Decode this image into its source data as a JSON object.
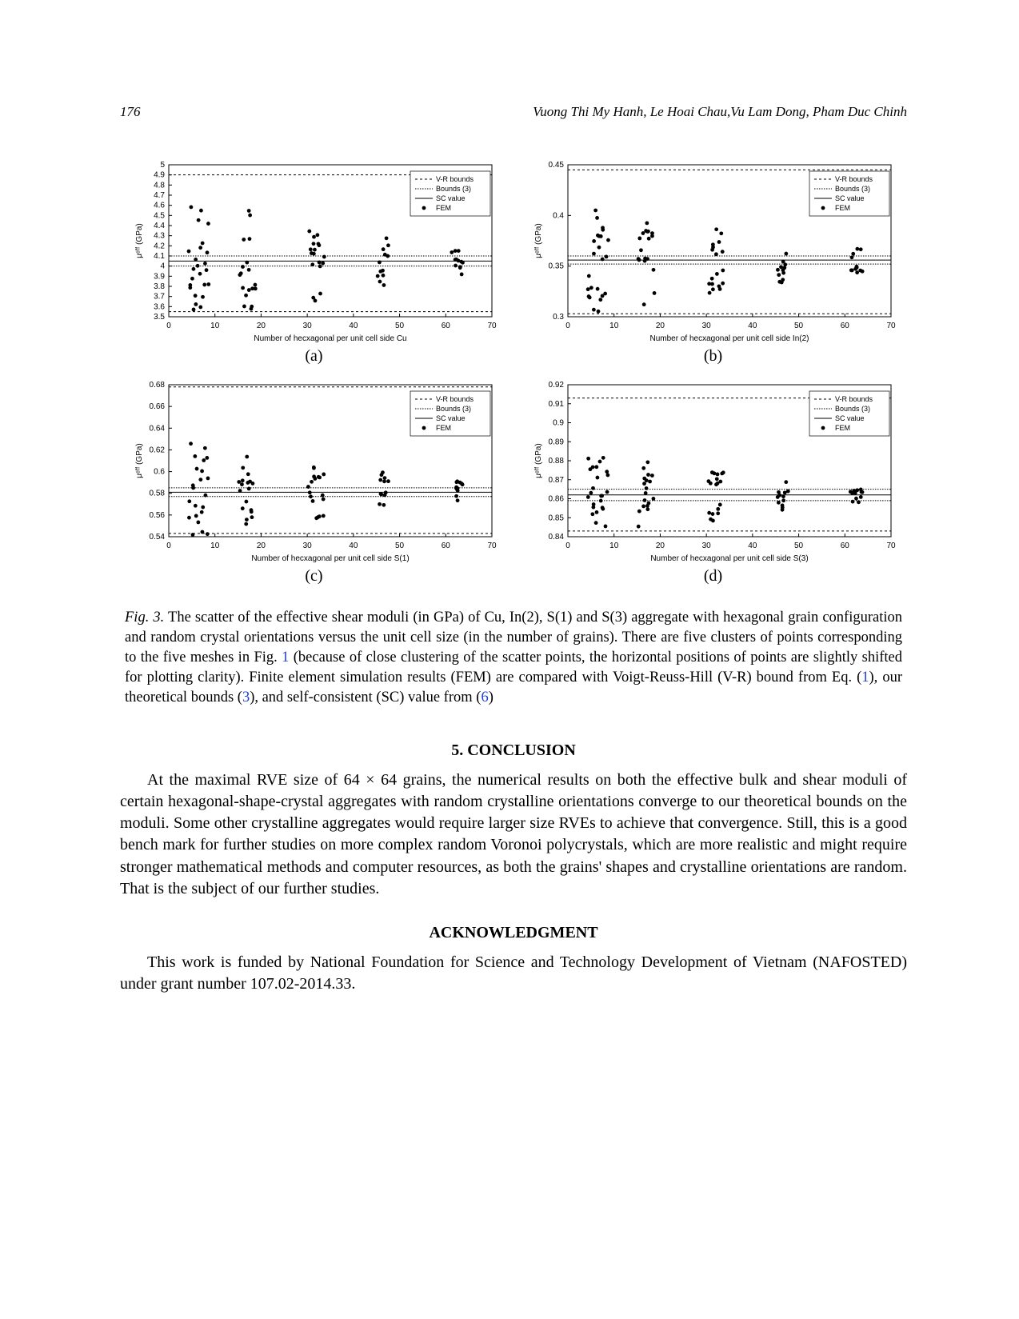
{
  "header": {
    "page_number": "176",
    "authors": "Vuong Thi My Hanh, Le Hoai Chau,Vu Lam Dong, Pham Duc Chinh"
  },
  "chart_common": {
    "font_family": "Helvetica, Arial, sans-serif",
    "axis_fontsize": 10,
    "legend_fontsize": 9,
    "marker_color": "#000000",
    "marker_size": 2.4,
    "line_colors": {
      "vr_upper": "#000000",
      "vr_lower": "#000000",
      "bounds_upper": "#000000",
      "bounds_lower": "#000000",
      "sc": "#000000"
    },
    "line_styles": {
      "vr": "3,3",
      "bounds": "1.5,1.5",
      "sc": "none"
    },
    "legend_entries": [
      "V-R bounds",
      "Bounds (3)",
      "SC value",
      "FEM"
    ]
  },
  "charts": [
    {
      "id": "a",
      "sublabel": "(a)",
      "ylabel": "μᵉᶠᶠ (GPa)",
      "xlabel": "Number of hecxagonal per unit cell side Cu",
      "xlim": [
        0,
        70
      ],
      "xtick_step": 10,
      "ylim": [
        3.5,
        5.0
      ],
      "ytick_step": 0.1,
      "lines": {
        "vr_upper": 4.9,
        "vr_lower": 3.55,
        "bounds_upper": 4.1,
        "bounds_lower": 4.0,
        "sc": 4.05
      },
      "clusters_x": [
        5,
        6,
        7,
        8,
        16,
        17,
        18,
        31,
        32,
        33,
        46,
        47,
        62,
        63
      ],
      "y_center": 4.05,
      "y_spread": 0.65
    },
    {
      "id": "b",
      "sublabel": "(b)",
      "ylabel": "μᵉᶠᶠ (GPa)",
      "xlabel": "Number of hecxagonal per unit cell side In(2)",
      "xlim": [
        0,
        70
      ],
      "xtick_step": 10,
      "ylim": [
        0.3,
        0.45
      ],
      "ytick_step": 0.05,
      "lines": {
        "vr_upper": 0.445,
        "vr_lower": 0.303,
        "bounds_upper": 0.36,
        "bounds_lower": 0.352,
        "sc": 0.356
      },
      "clusters_x": [
        5,
        6,
        7,
        8,
        16,
        17,
        18,
        31,
        32,
        33,
        46,
        47,
        62,
        63
      ],
      "y_center": 0.356,
      "y_spread": 0.055
    },
    {
      "id": "c",
      "sublabel": "(c)",
      "ylabel": "μᵉᶠᶠ (GPa)",
      "xlabel": "Number of hecxagonal per unit cell side S(1)",
      "xlim": [
        0,
        70
      ],
      "xtick_step": 10,
      "ylim": [
        0.54,
        0.68
      ],
      "ytick_step": 0.02,
      "lines": {
        "vr_upper": 0.678,
        "vr_lower": 0.543,
        "bounds_upper": 0.585,
        "bounds_lower": 0.577,
        "sc": 0.581
      },
      "clusters_x": [
        5,
        6,
        7,
        8,
        16,
        17,
        18,
        31,
        32,
        33,
        46,
        47,
        62,
        63
      ],
      "y_center": 0.581,
      "y_spread": 0.05
    },
    {
      "id": "d",
      "sublabel": "(d)",
      "ylabel": "μᵉᶠᶠ (GPa)",
      "xlabel": "Number of hecxagonal per unit cell side S(3)",
      "xlim": [
        0,
        70
      ],
      "xtick_step": 10,
      "ylim": [
        0.84,
        0.92
      ],
      "ytick_step": 0.01,
      "lines": {
        "vr_upper": 0.913,
        "vr_lower": 0.843,
        "bounds_upper": 0.865,
        "bounds_lower": 0.859,
        "sc": 0.862
      },
      "clusters_x": [
        5,
        6,
        7,
        8,
        16,
        17,
        18,
        31,
        32,
        33,
        46,
        47,
        62,
        63
      ],
      "y_center": 0.862,
      "y_spread": 0.023
    }
  ],
  "caption": {
    "figlabel": "Fig. 3.",
    "body1": "The scatter of the effective shear moduli (in GPa) of Cu, In(2), S(1) and S(3) aggregate with hexagonal grain configuration and random crystal orientations versus the unit cell size (in the number of grains). There are five clusters of points corresponding to the five meshes in Fig. ",
    "ref1": "1",
    "body2": " (because of close clustering of the scatter points, the horizontal positions of points are slightly shifted for plotting clarity).   Finite element simulation results (FEM) are compared with Voigt-Reuss-Hill (V-R) bound from Eq. (",
    "ref2": "1",
    "body3": "), our theoretical bounds (",
    "ref3": "3",
    "body4": "), and self-consistent (SC) value from (",
    "ref4": "6",
    "body5": ")"
  },
  "conclusion": {
    "heading": "5. CONCLUSION",
    "text": "At the maximal RVE size of 64 × 64 grains, the numerical results on both the effective bulk and shear moduli of certain hexagonal-shape-crystal aggregates with random crystalline orientations converge to our theoretical bounds on the moduli. Some other crystalline aggregates would require larger size RVEs to achieve that convergence. Still, this is a good bench mark for further studies on more complex random Voronoi polycrystals, which are more realistic and might require stronger mathematical methods and computer resources, as both the grains' shapes and crystalline orientations are random. That is the subject of our further studies."
  },
  "acknowledgment": {
    "heading": "ACKNOWLEDGMENT",
    "text": "This work is funded by National Foundation for Science and Technology Development of Vietnam (NAFOSTED) under grant number 107.02-2014.33."
  }
}
